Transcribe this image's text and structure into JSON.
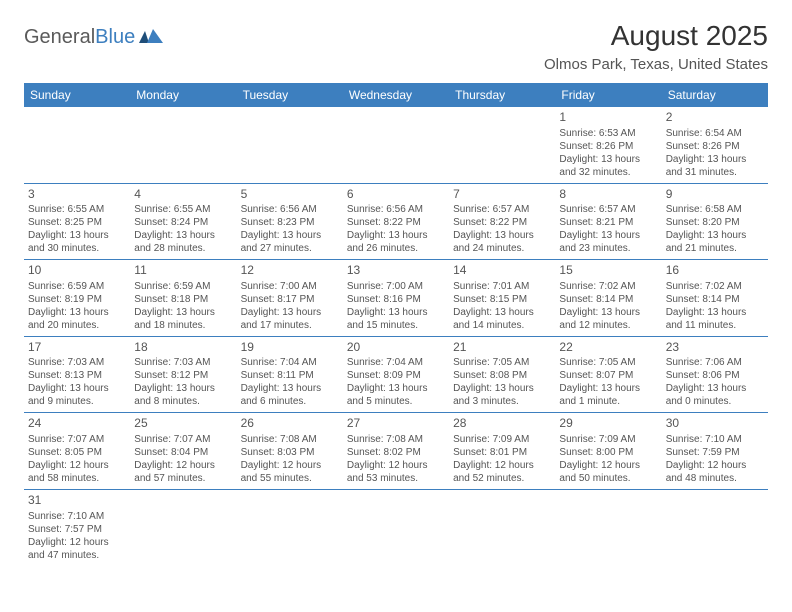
{
  "brand": {
    "part1": "General",
    "part2": "Blue"
  },
  "title": "August 2025",
  "subtitle": "Olmos Park, Texas, United States",
  "day_headers": [
    "Sunday",
    "Monday",
    "Tuesday",
    "Wednesday",
    "Thursday",
    "Friday",
    "Saturday"
  ],
  "colors": {
    "header_bg": "#3d7fbf",
    "header_text": "#ffffff",
    "border": "#3d7fbf",
    "text": "#555555",
    "title": "#333333"
  },
  "weeks": [
    [
      null,
      null,
      null,
      null,
      null,
      {
        "n": "1",
        "sr": "Sunrise: 6:53 AM",
        "ss": "Sunset: 8:26 PM",
        "d1": "Daylight: 13 hours",
        "d2": "and 32 minutes."
      },
      {
        "n": "2",
        "sr": "Sunrise: 6:54 AM",
        "ss": "Sunset: 8:26 PM",
        "d1": "Daylight: 13 hours",
        "d2": "and 31 minutes."
      }
    ],
    [
      {
        "n": "3",
        "sr": "Sunrise: 6:55 AM",
        "ss": "Sunset: 8:25 PM",
        "d1": "Daylight: 13 hours",
        "d2": "and 30 minutes."
      },
      {
        "n": "4",
        "sr": "Sunrise: 6:55 AM",
        "ss": "Sunset: 8:24 PM",
        "d1": "Daylight: 13 hours",
        "d2": "and 28 minutes."
      },
      {
        "n": "5",
        "sr": "Sunrise: 6:56 AM",
        "ss": "Sunset: 8:23 PM",
        "d1": "Daylight: 13 hours",
        "d2": "and 27 minutes."
      },
      {
        "n": "6",
        "sr": "Sunrise: 6:56 AM",
        "ss": "Sunset: 8:22 PM",
        "d1": "Daylight: 13 hours",
        "d2": "and 26 minutes."
      },
      {
        "n": "7",
        "sr": "Sunrise: 6:57 AM",
        "ss": "Sunset: 8:22 PM",
        "d1": "Daylight: 13 hours",
        "d2": "and 24 minutes."
      },
      {
        "n": "8",
        "sr": "Sunrise: 6:57 AM",
        "ss": "Sunset: 8:21 PM",
        "d1": "Daylight: 13 hours",
        "d2": "and 23 minutes."
      },
      {
        "n": "9",
        "sr": "Sunrise: 6:58 AM",
        "ss": "Sunset: 8:20 PM",
        "d1": "Daylight: 13 hours",
        "d2": "and 21 minutes."
      }
    ],
    [
      {
        "n": "10",
        "sr": "Sunrise: 6:59 AM",
        "ss": "Sunset: 8:19 PM",
        "d1": "Daylight: 13 hours",
        "d2": "and 20 minutes."
      },
      {
        "n": "11",
        "sr": "Sunrise: 6:59 AM",
        "ss": "Sunset: 8:18 PM",
        "d1": "Daylight: 13 hours",
        "d2": "and 18 minutes."
      },
      {
        "n": "12",
        "sr": "Sunrise: 7:00 AM",
        "ss": "Sunset: 8:17 PM",
        "d1": "Daylight: 13 hours",
        "d2": "and 17 minutes."
      },
      {
        "n": "13",
        "sr": "Sunrise: 7:00 AM",
        "ss": "Sunset: 8:16 PM",
        "d1": "Daylight: 13 hours",
        "d2": "and 15 minutes."
      },
      {
        "n": "14",
        "sr": "Sunrise: 7:01 AM",
        "ss": "Sunset: 8:15 PM",
        "d1": "Daylight: 13 hours",
        "d2": "and 14 minutes."
      },
      {
        "n": "15",
        "sr": "Sunrise: 7:02 AM",
        "ss": "Sunset: 8:14 PM",
        "d1": "Daylight: 13 hours",
        "d2": "and 12 minutes."
      },
      {
        "n": "16",
        "sr": "Sunrise: 7:02 AM",
        "ss": "Sunset: 8:14 PM",
        "d1": "Daylight: 13 hours",
        "d2": "and 11 minutes."
      }
    ],
    [
      {
        "n": "17",
        "sr": "Sunrise: 7:03 AM",
        "ss": "Sunset: 8:13 PM",
        "d1": "Daylight: 13 hours",
        "d2": "and 9 minutes."
      },
      {
        "n": "18",
        "sr": "Sunrise: 7:03 AM",
        "ss": "Sunset: 8:12 PM",
        "d1": "Daylight: 13 hours",
        "d2": "and 8 minutes."
      },
      {
        "n": "19",
        "sr": "Sunrise: 7:04 AM",
        "ss": "Sunset: 8:11 PM",
        "d1": "Daylight: 13 hours",
        "d2": "and 6 minutes."
      },
      {
        "n": "20",
        "sr": "Sunrise: 7:04 AM",
        "ss": "Sunset: 8:09 PM",
        "d1": "Daylight: 13 hours",
        "d2": "and 5 minutes."
      },
      {
        "n": "21",
        "sr": "Sunrise: 7:05 AM",
        "ss": "Sunset: 8:08 PM",
        "d1": "Daylight: 13 hours",
        "d2": "and 3 minutes."
      },
      {
        "n": "22",
        "sr": "Sunrise: 7:05 AM",
        "ss": "Sunset: 8:07 PM",
        "d1": "Daylight: 13 hours",
        "d2": "and 1 minute."
      },
      {
        "n": "23",
        "sr": "Sunrise: 7:06 AM",
        "ss": "Sunset: 8:06 PM",
        "d1": "Daylight: 13 hours",
        "d2": "and 0 minutes."
      }
    ],
    [
      {
        "n": "24",
        "sr": "Sunrise: 7:07 AM",
        "ss": "Sunset: 8:05 PM",
        "d1": "Daylight: 12 hours",
        "d2": "and 58 minutes."
      },
      {
        "n": "25",
        "sr": "Sunrise: 7:07 AM",
        "ss": "Sunset: 8:04 PM",
        "d1": "Daylight: 12 hours",
        "d2": "and 57 minutes."
      },
      {
        "n": "26",
        "sr": "Sunrise: 7:08 AM",
        "ss": "Sunset: 8:03 PM",
        "d1": "Daylight: 12 hours",
        "d2": "and 55 minutes."
      },
      {
        "n": "27",
        "sr": "Sunrise: 7:08 AM",
        "ss": "Sunset: 8:02 PM",
        "d1": "Daylight: 12 hours",
        "d2": "and 53 minutes."
      },
      {
        "n": "28",
        "sr": "Sunrise: 7:09 AM",
        "ss": "Sunset: 8:01 PM",
        "d1": "Daylight: 12 hours",
        "d2": "and 52 minutes."
      },
      {
        "n": "29",
        "sr": "Sunrise: 7:09 AM",
        "ss": "Sunset: 8:00 PM",
        "d1": "Daylight: 12 hours",
        "d2": "and 50 minutes."
      },
      {
        "n": "30",
        "sr": "Sunrise: 7:10 AM",
        "ss": "Sunset: 7:59 PM",
        "d1": "Daylight: 12 hours",
        "d2": "and 48 minutes."
      }
    ],
    [
      {
        "n": "31",
        "sr": "Sunrise: 7:10 AM",
        "ss": "Sunset: 7:57 PM",
        "d1": "Daylight: 12 hours",
        "d2": "and 47 minutes."
      },
      null,
      null,
      null,
      null,
      null,
      null
    ]
  ]
}
